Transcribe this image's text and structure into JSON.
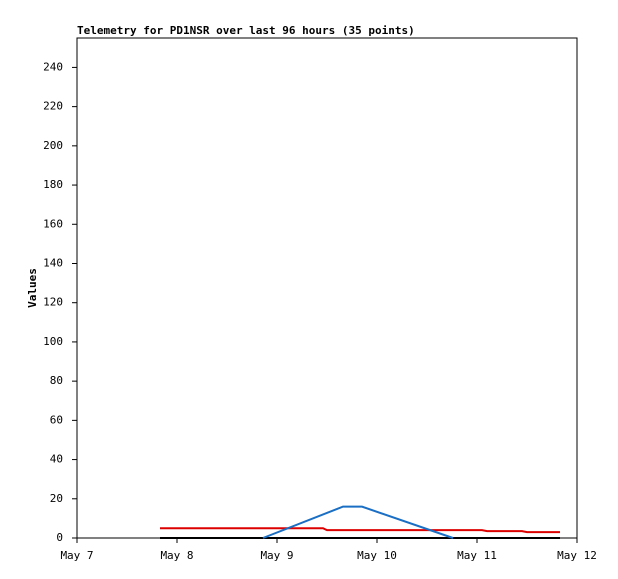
{
  "chart_data": {
    "type": "line",
    "title": "Telemetry for PD1NSR over last 96 hours (35 points)",
    "y_label": "Values",
    "series": [
      {
        "color": "#000000",
        "x": [
          7.83,
          11.83
        ],
        "values": [
          0,
          0
        ]
      },
      {
        "color": "#dd0000",
        "x": [
          7.83,
          9.46,
          9.5,
          11.05,
          11.1,
          11.45,
          11.5,
          11.83
        ],
        "values": [
          5,
          5,
          4,
          4,
          3.5,
          3.5,
          3,
          3
        ]
      },
      {
        "color": "#1a6fc4",
        "x": [
          8.86,
          9.66,
          9.85,
          10.76
        ],
        "values": [
          0,
          16,
          16,
          0
        ]
      }
    ],
    "xlim": [
      7,
      12
    ],
    "xticks": [
      {
        "value": 7,
        "label": "May 7"
      },
      {
        "value": 8,
        "label": "May 8"
      },
      {
        "value": 9,
        "label": "May 9"
      },
      {
        "value": 10,
        "label": "May 10"
      },
      {
        "value": 11,
        "label": "May 11"
      },
      {
        "value": 12,
        "label": "May 12"
      }
    ],
    "ylim": [
      0,
      255
    ],
    "yticks": [
      0,
      20,
      40,
      60,
      80,
      100,
      120,
      140,
      160,
      180,
      200,
      220,
      240
    ]
  }
}
